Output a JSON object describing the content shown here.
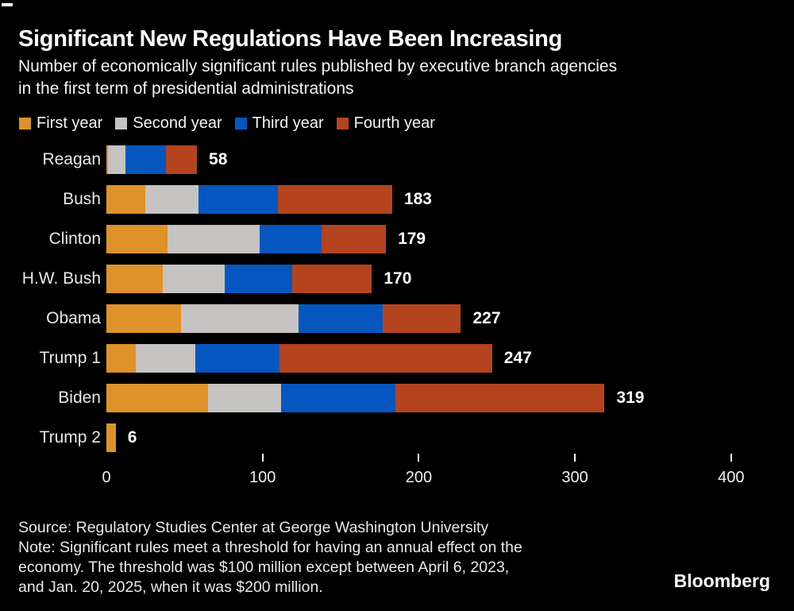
{
  "header": {
    "title": "Significant New Regulations Have Been Increasing",
    "subtitle_line1": "Number of economically significant rules published by executive branch agencies",
    "subtitle_line2": "in the first term of presidential administrations"
  },
  "chart_data": {
    "type": "bar",
    "orientation": "horizontal",
    "stacked": true,
    "categories": [
      "Reagan",
      "Bush",
      "Clinton",
      "H.W. Bush",
      "Obama",
      "Trump 1",
      "Biden",
      "Trump 2"
    ],
    "totals": [
      58,
      183,
      179,
      170,
      227,
      247,
      319,
      6
    ],
    "series": [
      {
        "name": "First year",
        "color": "#DE9229",
        "values": [
          1,
          25,
          39,
          36,
          48,
          19,
          65,
          6
        ]
      },
      {
        "name": "Second year",
        "color": "#C5C4C2",
        "values": [
          11,
          34,
          59,
          40,
          75,
          38,
          47,
          0
        ]
      },
      {
        "name": "Third year",
        "color": "#0556BE",
        "values": [
          26,
          51,
          40,
          43,
          54,
          54,
          73,
          0
        ]
      },
      {
        "name": "Fourth year",
        "color": "#B3441E",
        "values": [
          20,
          73,
          41,
          51,
          50,
          136,
          134,
          0
        ]
      }
    ],
    "x_axis": {
      "ticks": [
        0,
        100,
        200,
        300,
        400
      ],
      "max": 400
    },
    "total_labels_shown": true,
    "legend_position": "top",
    "grid": false
  },
  "footer": {
    "source": "Source: Regulatory Studies Center at George Washington University",
    "note_line1": "Note: Significant rules meet a threshold for having an annual effect on the",
    "note_line2": "economy. The threshold was $100 million except between April 6, 2023,",
    "note_line3": "and Jan. 20, 2025, when it was $200 million.",
    "brand": "Bloomberg"
  },
  "colors": {
    "background": "#000000",
    "text_primary": "#FFFFFF",
    "text_secondary": "#E9E9E9"
  }
}
